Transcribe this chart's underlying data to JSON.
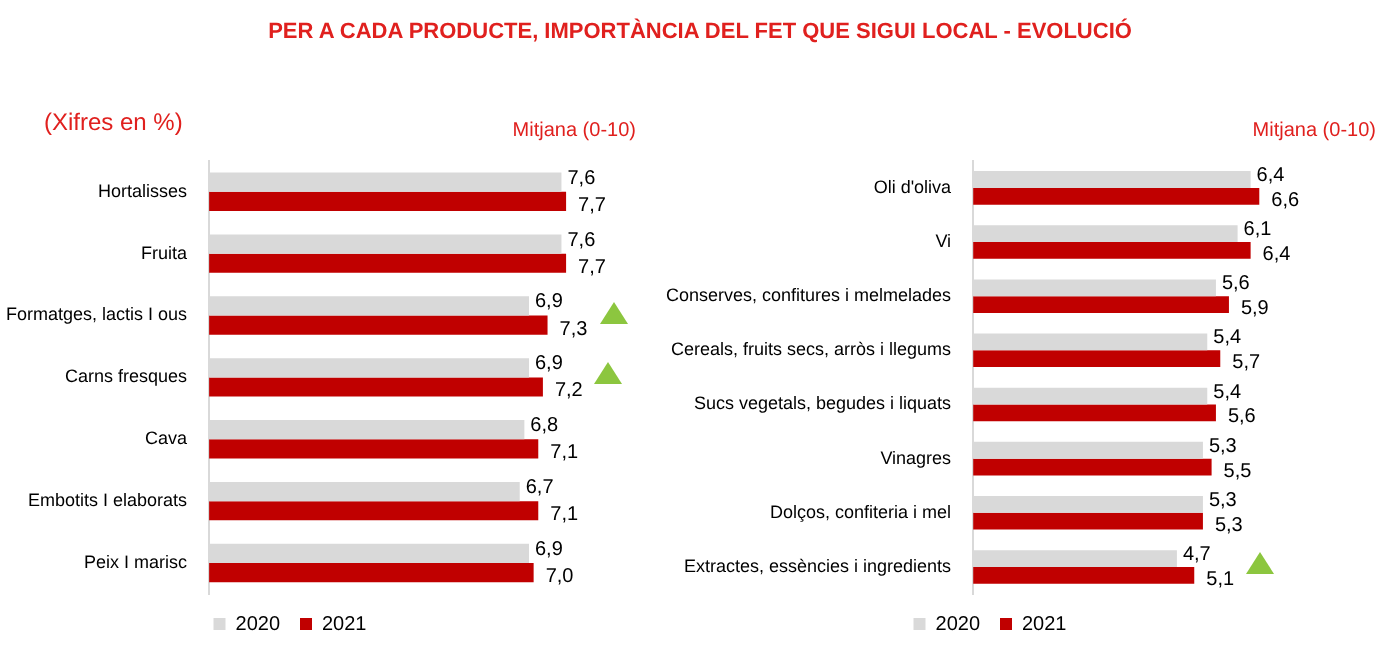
{
  "chart_data": [
    {
      "type": "bar",
      "orientation": "horizontal",
      "title": "PER A CADA PRODUCTE, IMPORTÀNCIA DEL FET QUE SIGUI LOCAL - EVOLUCIÓ",
      "annotations": [
        "(Xifres en %)",
        "Mitjana (0-10)"
      ],
      "categories": [
        "Hortalisses",
        "Fruita",
        "Formatges, lactis I ous",
        "Carns fresques",
        "Cava",
        "Embotits I elaborats",
        "Peix I marisc"
      ],
      "series": [
        {
          "name": "2020",
          "color": "#d9d9d9",
          "values": [
            7.6,
            7.6,
            6.9,
            6.9,
            6.8,
            6.7,
            6.9
          ],
          "value_labels": [
            "7,6",
            "7,6",
            "6,9",
            "6,9",
            "6,8",
            "6,7",
            "6,9"
          ]
        },
        {
          "name": "2021",
          "color": "#c00000",
          "values": [
            7.7,
            7.7,
            7.3,
            7.2,
            7.1,
            7.1,
            7.0
          ],
          "value_labels": [
            "7,7",
            "7,7",
            "7,3",
            "7,2",
            "7,1",
            "7,1",
            "7,0"
          ]
        }
      ],
      "tick_labels": "y",
      "legend": "bottom"
    },
    {
      "type": "bar",
      "orientation": "horizontal",
      "annotations": [
        "Mitjana (0-10)"
      ],
      "categories": [
        "Oli d'oliva",
        "Vi",
        "Conserves, confitures i melmelades",
        "Cereals, fruits secs, arròs i llegums",
        "Sucs vegetals, begudes i liquats",
        "Vinagres",
        "Dolços, confiteria i mel",
        "Extractes, essències i ingredients"
      ],
      "series": [
        {
          "name": "2020",
          "color": "#d9d9d9",
          "values": [
            6.4,
            6.1,
            5.6,
            5.4,
            5.4,
            5.3,
            5.3,
            4.7
          ],
          "value_labels": [
            "6,4",
            "6,1",
            "5,6",
            "5,4",
            "5,4",
            "5,3",
            "5,3",
            "4,7"
          ]
        },
        {
          "name": "2021",
          "color": "#c00000",
          "values": [
            6.6,
            6.4,
            5.9,
            5.7,
            5.6,
            5.5,
            5.3,
            5.1
          ],
          "value_labels": [
            "6,6",
            "6,4",
            "5,9",
            "5,7",
            "5,6",
            "5,5",
            "5,3",
            "5,1"
          ]
        }
      ],
      "tick_labels": "y",
      "legend": "bottom"
    }
  ]
}
